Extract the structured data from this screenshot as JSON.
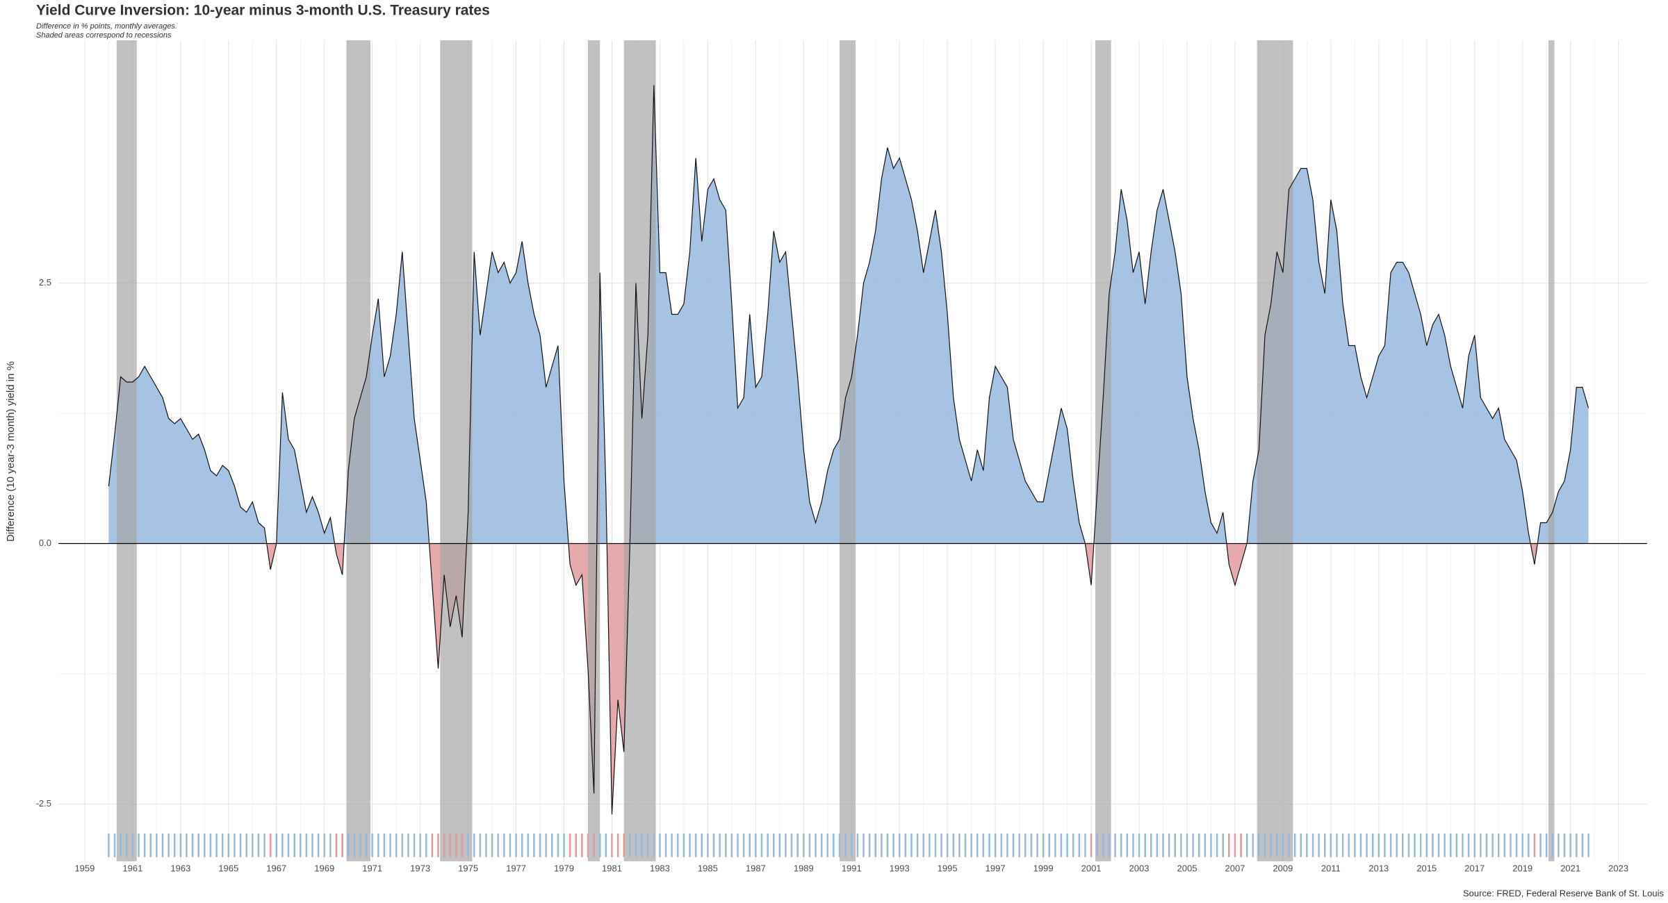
{
  "chart_data": {
    "type": "area",
    "title": "Yield Curve Inversion: 10-year minus 3-month U.S. Treasury rates",
    "subtitle": [
      "Difference in % points, monthly averages.",
      "Shaded areas correspond to recessions"
    ],
    "ylabel": "Difference (10 year-3 month) yield in %",
    "caption": "Source: FRED, Federal Reserve Bank of St. Louis",
    "xlim": [
      1957.9,
      2024.2
    ],
    "ylim": [
      -3.05,
      4.83
    ],
    "xticks": [
      1959,
      1961,
      1963,
      1965,
      1967,
      1969,
      1971,
      1973,
      1975,
      1977,
      1979,
      1981,
      1983,
      1985,
      1987,
      1989,
      1991,
      1993,
      1995,
      1997,
      1999,
      2001,
      2003,
      2005,
      2007,
      2009,
      2011,
      2013,
      2015,
      2017,
      2019,
      2021,
      2023
    ],
    "yticks": [
      -2.5,
      {
        "value": 0,
        "label": "0.0"
      },
      2.5
    ],
    "grid": true,
    "positive_color": "#97b9df",
    "negative_color": "#e29a9e",
    "recession_color": "#a6a6a6",
    "recessions": [
      [
        1960.33,
        1961.17
      ],
      [
        1969.92,
        1970.92
      ],
      [
        1973.83,
        1975.17
      ],
      [
        1980.0,
        1980.5
      ],
      [
        1981.5,
        1982.83
      ],
      [
        1990.5,
        1991.17
      ],
      [
        2001.17,
        2001.83
      ],
      [
        2007.92,
        2009.42
      ],
      [
        2020.08,
        2020.33
      ]
    ],
    "x": [
      1960,
      1960.25,
      1960.5,
      1960.75,
      1961,
      1961.25,
      1961.5,
      1961.75,
      1962,
      1962.25,
      1962.5,
      1962.75,
      1963,
      1963.25,
      1963.5,
      1963.75,
      1964,
      1964.25,
      1964.5,
      1964.75,
      1965,
      1965.25,
      1965.5,
      1965.75,
      1966,
      1966.25,
      1966.5,
      1966.75,
      1967,
      1967.25,
      1967.5,
      1967.75,
      1968,
      1968.25,
      1968.5,
      1968.75,
      1969,
      1969.25,
      1969.5,
      1969.75,
      1970,
      1970.25,
      1970.5,
      1970.75,
      1971,
      1971.25,
      1971.5,
      1971.75,
      1972,
      1972.25,
      1972.5,
      1972.75,
      1973,
      1973.25,
      1973.5,
      1973.75,
      1974,
      1974.25,
      1974.5,
      1974.75,
      1975,
      1975.25,
      1975.5,
      1975.75,
      1976,
      1976.25,
      1976.5,
      1976.75,
      1977,
      1977.25,
      1977.5,
      1977.75,
      1978,
      1978.25,
      1978.5,
      1978.75,
      1979,
      1979.25,
      1979.5,
      1979.75,
      1980,
      1980.25,
      1980.5,
      1980.75,
      1981,
      1981.25,
      1981.5,
      1981.75,
      1982,
      1982.25,
      1982.5,
      1982.75,
      1983,
      1983.25,
      1983.5,
      1983.75,
      1984,
      1984.25,
      1984.5,
      1984.75,
      1985,
      1985.25,
      1985.5,
      1985.75,
      1986,
      1986.25,
      1986.5,
      1986.75,
      1987,
      1987.25,
      1987.5,
      1987.75,
      1988,
      1988.25,
      1988.5,
      1988.75,
      1989,
      1989.25,
      1989.5,
      1989.75,
      1990,
      1990.25,
      1990.5,
      1990.75,
      1991,
      1991.25,
      1991.5,
      1991.75,
      1992,
      1992.25,
      1992.5,
      1992.75,
      1993,
      1993.25,
      1993.5,
      1993.75,
      1994,
      1994.25,
      1994.5,
      1994.75,
      1995,
      1995.25,
      1995.5,
      1995.75,
      1996,
      1996.25,
      1996.5,
      1996.75,
      1997,
      1997.25,
      1997.5,
      1997.75,
      1998,
      1998.25,
      1998.5,
      1998.75,
      1999,
      1999.25,
      1999.5,
      1999.75,
      2000,
      2000.25,
      2000.5,
      2000.75,
      2001,
      2001.25,
      2001.5,
      2001.75,
      2002,
      2002.25,
      2002.5,
      2002.75,
      2003,
      2003.25,
      2003.5,
      2003.75,
      2004,
      2004.25,
      2004.5,
      2004.75,
      2005,
      2005.25,
      2005.5,
      2005.75,
      2006,
      2006.25,
      2006.5,
      2006.75,
      2007,
      2007.25,
      2007.5,
      2007.75,
      2008,
      2008.25,
      2008.5,
      2008.75,
      2009,
      2009.25,
      2009.5,
      2009.75,
      2010,
      2010.25,
      2010.5,
      2010.75,
      2011,
      2011.25,
      2011.5,
      2011.75,
      2012,
      2012.25,
      2012.5,
      2012.75,
      2013,
      2013.25,
      2013.5,
      2013.75,
      2014,
      2014.25,
      2014.5,
      2014.75,
      2015,
      2015.25,
      2015.5,
      2015.75,
      2016,
      2016.25,
      2016.5,
      2016.75,
      2017,
      2017.25,
      2017.5,
      2017.75,
      2018,
      2018.25,
      2018.5,
      2018.75,
      2019,
      2019.25,
      2019.5,
      2019.75,
      2020,
      2020.25,
      2020.5,
      2020.75,
      2021,
      2021.25,
      2021.5,
      2021.75
    ],
    "values": [
      0.55,
      1.05,
      1.6,
      1.55,
      1.55,
      1.6,
      1.7,
      1.6,
      1.5,
      1.4,
      1.2,
      1.15,
      1.2,
      1.1,
      1.0,
      1.05,
      0.9,
      0.7,
      0.65,
      0.75,
      0.7,
      0.55,
      0.35,
      0.3,
      0.4,
      0.2,
      0.15,
      -0.25,
      0.0,
      1.45,
      1.0,
      0.9,
      0.6,
      0.3,
      0.45,
      0.3,
      0.1,
      0.25,
      -0.1,
      -0.3,
      0.7,
      1.2,
      1.4,
      1.6,
      2.0,
      2.35,
      1.6,
      1.8,
      2.2,
      2.8,
      2.0,
      1.2,
      0.8,
      0.4,
      -0.4,
      -1.2,
      -0.3,
      -0.8,
      -0.5,
      -0.9,
      0.3,
      2.8,
      2.0,
      2.4,
      2.8,
      2.6,
      2.7,
      2.5,
      2.6,
      2.9,
      2.5,
      2.2,
      2.0,
      1.5,
      1.7,
      1.9,
      0.6,
      -0.2,
      -0.4,
      -0.3,
      -1.2,
      -2.4,
      2.6,
      0.5,
      -2.6,
      -1.5,
      -2.0,
      0.0,
      2.5,
      1.2,
      2.0,
      4.4,
      2.6,
      2.6,
      2.2,
      2.2,
      2.3,
      2.8,
      3.7,
      2.9,
      3.4,
      3.5,
      3.3,
      3.2,
      2.3,
      1.3,
      1.4,
      2.2,
      1.5,
      1.6,
      2.2,
      3.0,
      2.7,
      2.8,
      2.2,
      1.6,
      0.9,
      0.4,
      0.2,
      0.4,
      0.7,
      0.9,
      1.0,
      1.4,
      1.6,
      2.0,
      2.5,
      2.7,
      3.0,
      3.5,
      3.8,
      3.6,
      3.7,
      3.5,
      3.3,
      3.0,
      2.6,
      2.9,
      3.2,
      2.8,
      2.2,
      1.4,
      1.0,
      0.8,
      0.6,
      0.9,
      0.7,
      1.4,
      1.7,
      1.6,
      1.5,
      1.0,
      0.8,
      0.6,
      0.5,
      0.4,
      0.4,
      0.7,
      1.0,
      1.3,
      1.1,
      0.6,
      0.2,
      0.0,
      -0.4,
      0.5,
      1.4,
      2.4,
      2.8,
      3.4,
      3.1,
      2.6,
      2.8,
      2.3,
      2.8,
      3.2,
      3.4,
      3.1,
      2.8,
      2.4,
      1.6,
      1.2,
      0.9,
      0.5,
      0.2,
      0.1,
      0.3,
      -0.2,
      -0.4,
      -0.2,
      0.0,
      0.6,
      0.9,
      2.0,
      2.3,
      2.8,
      2.6,
      3.4,
      3.5,
      3.6,
      3.6,
      3.3,
      2.7,
      2.4,
      3.3,
      3.0,
      2.3,
      1.9,
      1.9,
      1.6,
      1.4,
      1.6,
      1.8,
      1.9,
      2.6,
      2.7,
      2.7,
      2.6,
      2.4,
      2.2,
      1.9,
      2.1,
      2.2,
      2.0,
      1.7,
      1.5,
      1.3,
      1.8,
      2.0,
      1.4,
      1.3,
      1.2,
      1.3,
      1.0,
      0.9,
      0.8,
      0.5,
      0.1,
      -0.2,
      0.2,
      0.2,
      0.3,
      0.5,
      0.6,
      0.9,
      1.5,
      1.5,
      1.3
    ]
  }
}
